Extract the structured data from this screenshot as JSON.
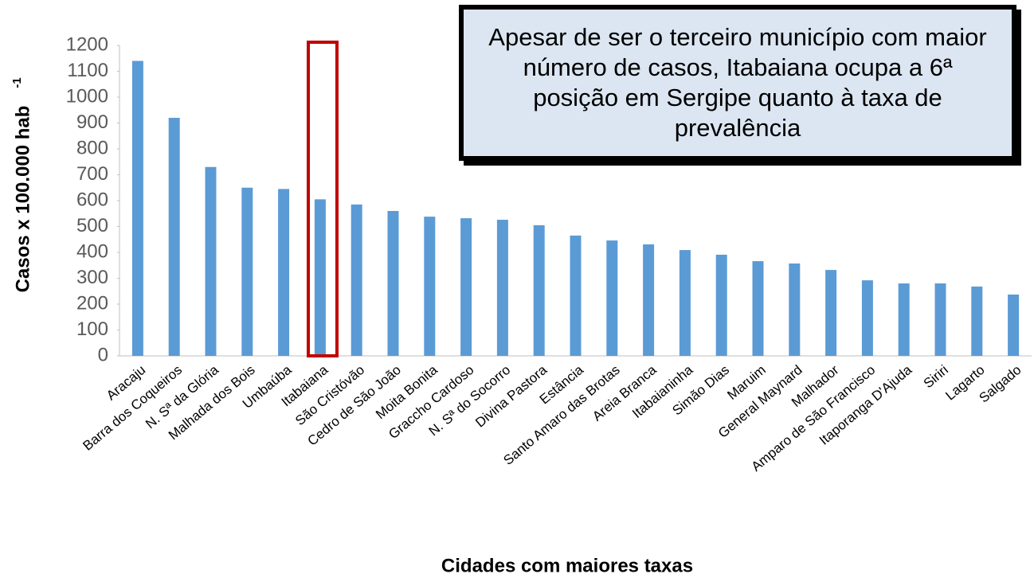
{
  "chart_data": {
    "type": "bar",
    "y_label": "Casos x 100.000 hab",
    "y_label_superscript": "-1",
    "x_label": "Cidades com maiores taxas",
    "annotation": "Apesar de ser o terceiro município com maior número de casos, Itabaiana ocupa a 6ª posição em Sergipe quanto à taxa de prevalência",
    "categories": [
      "Aracaju",
      "Barra dos Coqueiros",
      "N. Sª da Glória",
      "Malhada dos Bois",
      "Umbaúba",
      "Itabaiana",
      "São Cristóvão",
      "Cedro de São João",
      "Moita Bonita",
      "Graccho Cardoso",
      "N. Sª do Socorro",
      "Divina Pastora",
      "Estância",
      "Santo Amaro das Brotas",
      "Areia Branca",
      "Itabaianinha",
      "Simão Dias",
      "Maruim",
      "General Maynard",
      "Malhador",
      "Amparo de São Francisco",
      "Itaporanga D'Ajuda",
      "Siriri",
      "Lagarto",
      "Salgado"
    ],
    "values": [
      1140,
      920,
      730,
      650,
      645,
      605,
      585,
      560,
      538,
      532,
      526,
      505,
      465,
      446,
      431,
      409,
      391,
      366,
      357,
      332,
      292,
      280,
      280,
      268,
      237
    ],
    "color": "#5b9bd5",
    "ylim": [
      0,
      1200
    ],
    "yticks": [
      0,
      100,
      200,
      300,
      400,
      500,
      600,
      700,
      800,
      900,
      1000,
      1100,
      1200
    ],
    "grid": false
  }
}
